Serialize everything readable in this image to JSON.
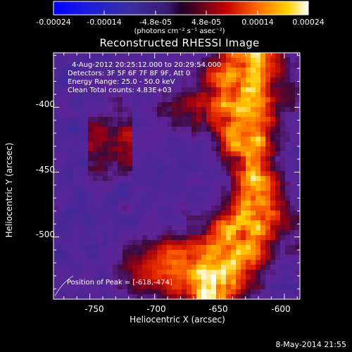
{
  "colorbar": {
    "ticks": [
      "-0.00024",
      "-0.00014",
      "-4.8e-05",
      "4.8e-05",
      "0.00014",
      "0.00024"
    ],
    "units": "(photons cm⁻² s⁻¹ asec⁻²)",
    "range": [
      -0.00024,
      0.00024
    ]
  },
  "title": "Reconstructed RHESSI Image",
  "info": {
    "line1": "4-Aug-2012 20:25:12.000 to 20:29:54.000",
    "line2": "Detectors: 3F 5F 6F 7F 8F 9F, Att 0",
    "line3": "Energy Range: 25.0 - 50.0 keV",
    "line4": "Clean    Total counts: 4.83E+03"
  },
  "peak": "Position of Peak = [-618,-474]",
  "axes": {
    "xlabel": "Heliocentric X (arcsec)",
    "ylabel": "Heliocentric Y (arcsec)",
    "xticks": [
      "-750",
      "-700",
      "-650",
      "-600"
    ],
    "yticks": [
      "-400",
      "-450",
      "-500"
    ],
    "xlim": [
      -778,
      -588
    ],
    "ylim": [
      -548,
      -358
    ]
  },
  "footer_date": "8-May-2014 21:55",
  "colors": {
    "background": "#000000",
    "text": "#ffffff"
  }
}
